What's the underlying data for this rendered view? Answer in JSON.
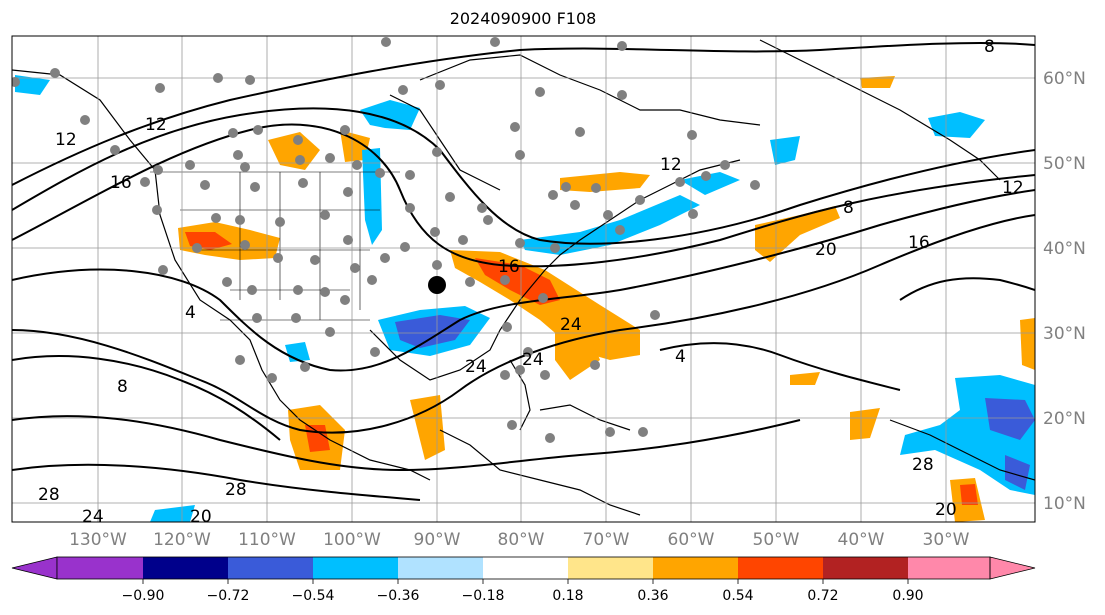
{
  "title": "2024090900 F108",
  "map": {
    "lon_labels": [
      "130°W",
      "120°W",
      "110°W",
      "100°W",
      "90°W",
      "80°W",
      "70°W",
      "60°W",
      "50°W",
      "40°W",
      "30°W"
    ],
    "lat_labels": [
      "60°N",
      "50°N",
      "40°N",
      "30°N",
      "20°N",
      "10°N"
    ],
    "contour_labels": [
      "8",
      "12",
      "12",
      "16",
      "20",
      "24",
      "24",
      "24",
      "28",
      "28",
      "4",
      "8",
      "16",
      "12",
      "20",
      "16",
      "4",
      "28",
      "20",
      "24",
      "8",
      "12"
    ]
  },
  "colorbar": {
    "ticks": [
      "−0.90",
      "−0.72",
      "−0.54",
      "−0.36",
      "−0.18",
      "0.18",
      "0.36",
      "0.54",
      "0.72",
      "0.90"
    ],
    "colors": [
      "#9932cc",
      "#00008b",
      "#3a5bd9",
      "#00bfff",
      "#b0e2ff",
      "#ffffff",
      "#ffe58a",
      "#ffa500",
      "#ff4500",
      "#b22222",
      "#ff88aa"
    ]
  },
  "colors": {
    "orange": "#ffa500",
    "red_orange": "#ff4500",
    "light_yellow": "#ffe58a",
    "dodger": "#00bfff",
    "royal": "#3a5bd9",
    "gray_station": "#808080"
  }
}
